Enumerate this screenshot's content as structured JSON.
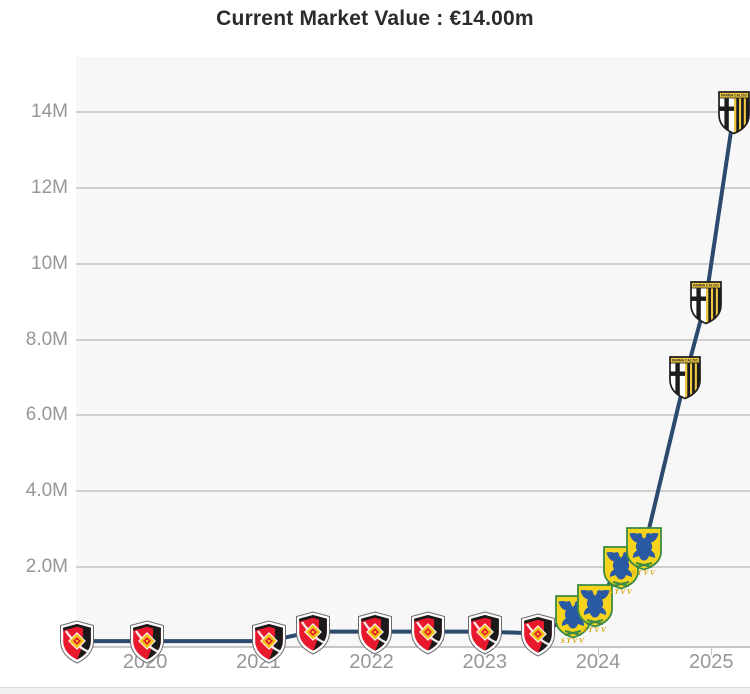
{
  "title": "Current Market Value : €14.00m",
  "colors": {
    "line": "#2c4a6d",
    "plot_background": "#f7f7f7",
    "gridline": "#cfcfcf",
    "axis_line": "#c6c6c6",
    "axis_text": "#979797",
    "title_text": "#2b2b2b",
    "footer_strip": "#eff1f3",
    "urawa_red": "#e8192c",
    "stvv_yellow": "#f6d41e",
    "stvv_blue": "#2a5aa3",
    "parma_gold": "#edc73f"
  },
  "icons": {
    "stvv_text": "STVV",
    "parma_text": "PARMA CALCIO"
  },
  "chart_data": {
    "type": "line",
    "title": "Current Market Value : €14.00m",
    "currency": "EUR",
    "unit": "million €",
    "current_value": "€14.00m",
    "xlabel": "",
    "ylabel": "",
    "grid": true,
    "legend": "none",
    "xlim": [
      2019.39,
      2025.34
    ],
    "ylim": [
      0,
      15.5
    ],
    "x_ticks": [
      {
        "value": 2020,
        "label": "2020"
      },
      {
        "value": 2021,
        "label": "2021"
      },
      {
        "value": 2022,
        "label": "2022"
      },
      {
        "value": 2023,
        "label": "2023"
      },
      {
        "value": 2024,
        "label": "2024"
      },
      {
        "value": 2025,
        "label": "2025"
      }
    ],
    "y_ticks": [
      {
        "value": 14,
        "label": "14M"
      },
      {
        "value": 12,
        "label": "12M"
      },
      {
        "value": 10,
        "label": "10M"
      },
      {
        "value": 8,
        "label": "8.0M"
      },
      {
        "value": 6,
        "label": "6.0M"
      },
      {
        "value": 4,
        "label": "4.0M"
      },
      {
        "value": 2,
        "label": "2.0M"
      }
    ],
    "series": [
      {
        "name": "Market value",
        "color": "#2c4a6d",
        "points": [
          {
            "x": 2019.4,
            "value": 0.05,
            "club": "Urawa Red Diamonds",
            "marker": "urawa-red-diamonds-crest"
          },
          {
            "x": 2020.02,
            "value": 0.05,
            "club": "Urawa Red Diamonds",
            "marker": "urawa-red-diamonds-crest"
          },
          {
            "x": 2021.09,
            "value": 0.05,
            "club": "Urawa Red Diamonds",
            "marker": "urawa-red-diamonds-crest"
          },
          {
            "x": 2021.48,
            "value": 0.3,
            "club": "Urawa Red Diamonds",
            "marker": "urawa-red-diamonds-crest"
          },
          {
            "x": 2022.03,
            "value": 0.3,
            "club": "Urawa Red Diamonds",
            "marker": "urawa-red-diamonds-crest"
          },
          {
            "x": 2022.5,
            "value": 0.3,
            "club": "Urawa Red Diamonds",
            "marker": "urawa-red-diamonds-crest"
          },
          {
            "x": 2023.0,
            "value": 0.3,
            "club": "Urawa Red Diamonds",
            "marker": "urawa-red-diamonds-crest"
          },
          {
            "x": 2023.47,
            "value": 0.25,
            "club": "Urawa Red Diamonds",
            "marker": "urawa-red-diamonds-crest"
          },
          {
            "x": 2023.78,
            "value": 0.7,
            "club": "Sint-Truidense VV",
            "marker": "sint-truiden-crest"
          },
          {
            "x": 2023.97,
            "value": 1.0,
            "club": "Sint-Truidense VV",
            "marker": "sint-truiden-crest"
          },
          {
            "x": 2024.2,
            "value": 2.0,
            "club": "Sint-Truidense VV",
            "marker": "sint-truiden-crest"
          },
          {
            "x": 2024.41,
            "value": 2.5,
            "club": "Sint-Truidense VV",
            "marker": "sint-truiden-crest"
          },
          {
            "x": 2024.77,
            "value": 7.0,
            "club": "Parma Calcio 1913",
            "marker": "parma-crest"
          },
          {
            "x": 2024.95,
            "value": 9.0,
            "club": "Parma Calcio 1913",
            "marker": "parma-crest"
          },
          {
            "x": 2025.2,
            "value": 14.0,
            "club": "Parma Calcio 1913",
            "marker": "parma-crest"
          }
        ]
      }
    ]
  }
}
